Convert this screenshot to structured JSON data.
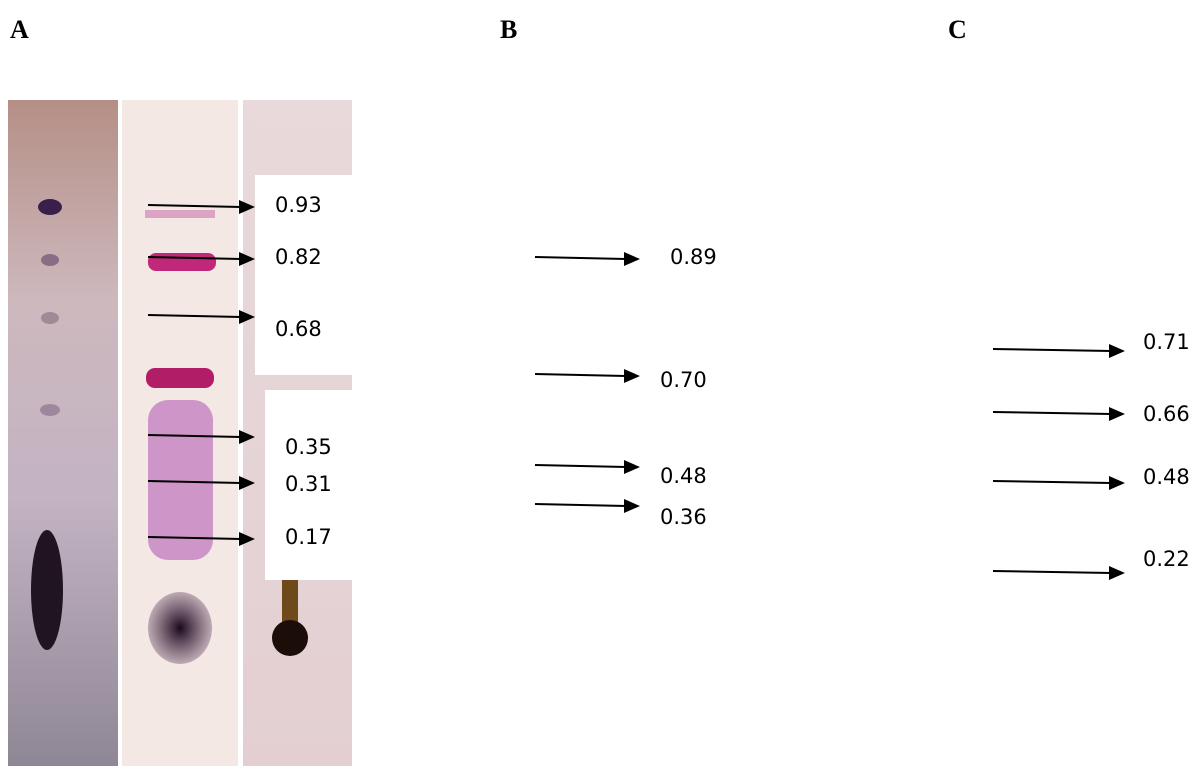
{
  "panels": [
    {
      "label": "A",
      "rf": [
        "0.93",
        "0.82",
        "0.68",
        "0.35",
        "0.31",
        "0.17"
      ]
    },
    {
      "label": "B",
      "rf": [
        "0.89",
        "0.70",
        "0.48",
        "0.36"
      ]
    },
    {
      "label": "C",
      "rf": [
        "0.71",
        "0.66",
        "0.48",
        "0.22"
      ]
    }
  ]
}
